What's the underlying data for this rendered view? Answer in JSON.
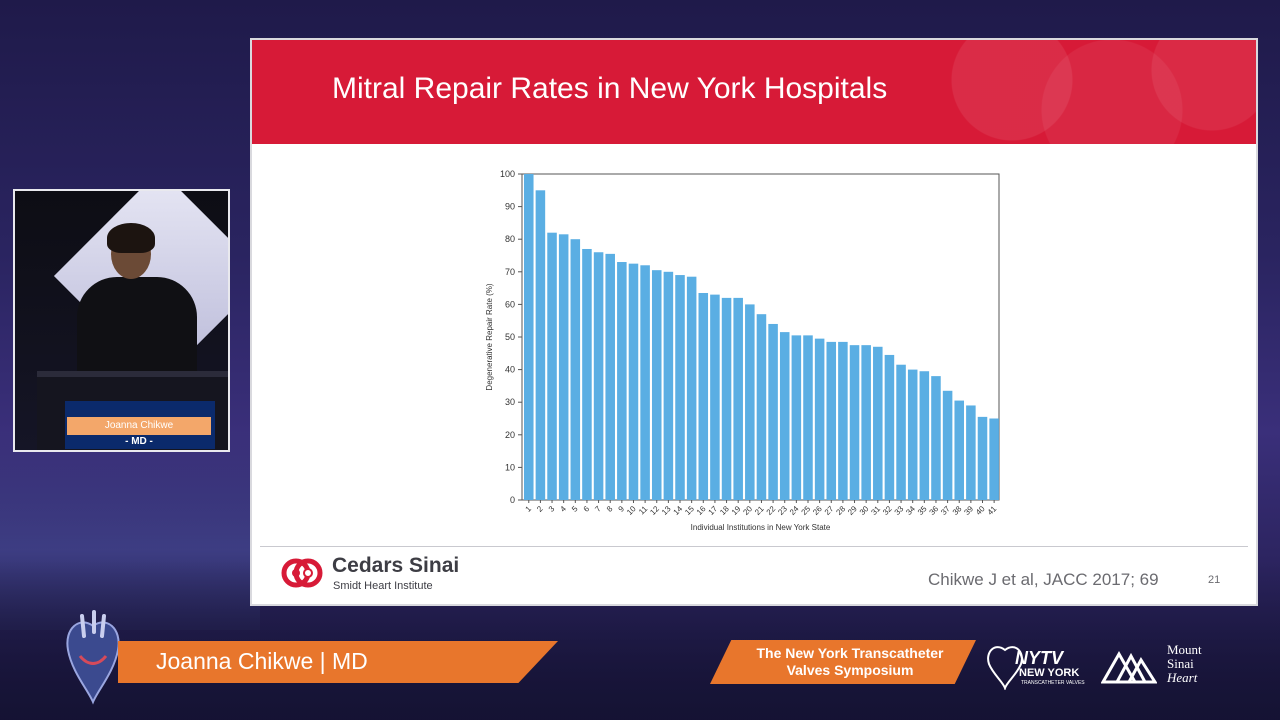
{
  "slide": {
    "title": "Mitral Repair Rates in New York Hospitals",
    "citation": "Chikwe J et al, JACC 2017; 69",
    "slide_number": "21",
    "logo_name": "Cedars Sinai",
    "logo_sub": "Smidt Heart Institute"
  },
  "speaker": {
    "lower_third": "Joanna Chikwe | MD",
    "podium_name": "Joanna Chikwe",
    "podium_title": "- MD -"
  },
  "event": {
    "banner_line1": "The New York Transcatheter",
    "banner_line2": "Valves Symposium",
    "nytv_line1": "NYTV",
    "nytv_line2": "NEW YORK",
    "nytv_line3": "TRANSCATHETER VALVES",
    "sponsor_line1": "Mount",
    "sponsor_line2": "Sinai",
    "sponsor_line3": "Heart"
  },
  "colors": {
    "header_red": "#d71a37",
    "bar_blue": "#5aaee3",
    "orange": "#e8762c"
  },
  "chart_data": {
    "type": "bar",
    "title": "",
    "xlabel": "Individual Institutions in New York State",
    "ylabel": "Degenerative Repair Rate (%)",
    "ylim": [
      0,
      100
    ],
    "yticks": [
      0,
      10,
      20,
      30,
      40,
      50,
      60,
      70,
      80,
      90,
      100
    ],
    "grid": false,
    "categories": [
      "1",
      "2",
      "3",
      "4",
      "5",
      "6",
      "7",
      "8",
      "9",
      "10",
      "11",
      "12",
      "13",
      "14",
      "15",
      "16",
      "17",
      "18",
      "19",
      "20",
      "21",
      "22",
      "23",
      "24",
      "25",
      "26",
      "27",
      "28",
      "29",
      "30",
      "31",
      "32",
      "33",
      "34",
      "35",
      "36",
      "37",
      "38",
      "39",
      "40",
      "41"
    ],
    "values": [
      100,
      95,
      82,
      81.5,
      80,
      77,
      76,
      75.5,
      73,
      72.5,
      72,
      70.5,
      70,
      69,
      68.5,
      63.5,
      63,
      62,
      62,
      60,
      57,
      54,
      51.5,
      50.5,
      50.5,
      49.5,
      48.5,
      48.5,
      47.5,
      47.5,
      47,
      44.5,
      41.5,
      40,
      39.5,
      38,
      33.5,
      30.5,
      29,
      25.5,
      25
    ]
  }
}
